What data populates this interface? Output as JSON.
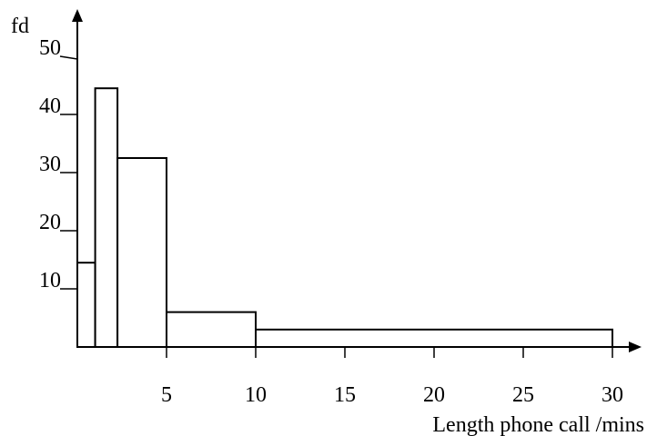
{
  "chart_data": {
    "type": "bar",
    "title": "",
    "xlabel": "Length phone call /mins",
    "ylabel": "fd",
    "xlim": [
      0,
      30
    ],
    "ylim": [
      0,
      50
    ],
    "x_ticks": [
      "5",
      "10",
      "15",
      "20",
      "25",
      "30"
    ],
    "y_ticks": [
      "10",
      "20",
      "30",
      "40",
      "50"
    ],
    "bins": [
      {
        "x0": 0,
        "x1": 1,
        "fd": 14.5
      },
      {
        "x0": 1,
        "x1": 2.25,
        "fd": 44.5
      },
      {
        "x0": 2.25,
        "x1": 5,
        "fd": 32.5
      },
      {
        "x0": 5,
        "x1": 10,
        "fd": 6
      },
      {
        "x0": 10,
        "x1": 30,
        "fd": 3
      }
    ],
    "grid": false,
    "legend": "none"
  }
}
